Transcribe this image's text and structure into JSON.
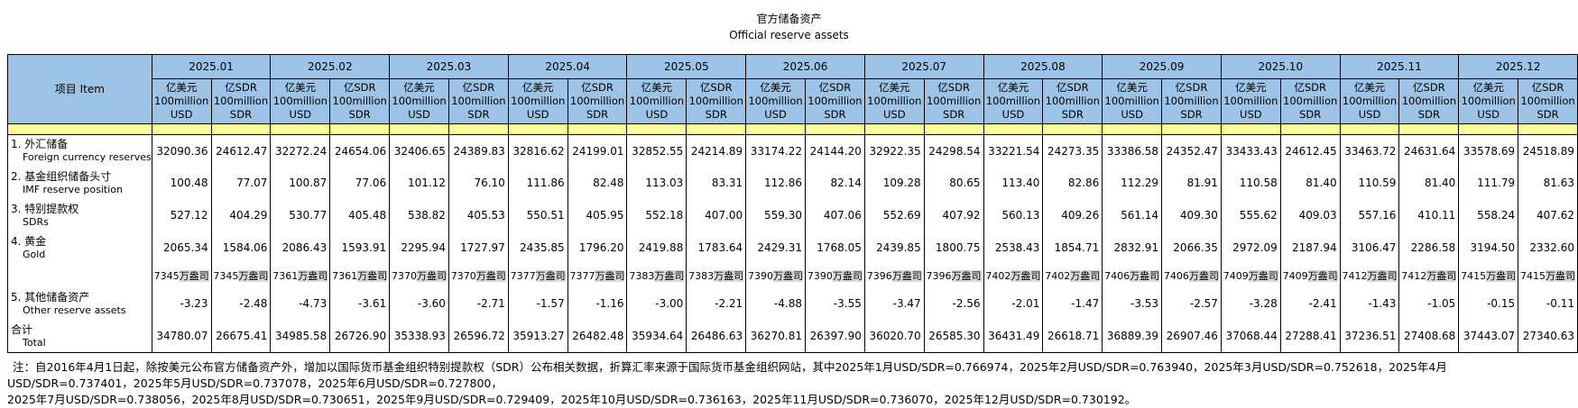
{
  "title": {
    "zh": "官方储备资产",
    "en": "Official reserve assets"
  },
  "item_header": "项目  Item",
  "months": [
    "2025.01",
    "2025.02",
    "2025.03",
    "2025.04",
    "2025.05",
    "2025.06",
    "2025.07",
    "2025.08",
    "2025.09",
    "2025.10",
    "2025.11",
    "2025.12"
  ],
  "units": {
    "usd": [
      "亿美元",
      "100million",
      "USD"
    ],
    "sdr": [
      "亿SDR",
      "100million",
      "SDR"
    ]
  },
  "colors": {
    "header_blue": "#9DC3E6",
    "spacer_yellow": "#FFFF99",
    "ounce_unit_gray": "#D9D9D9"
  },
  "gold_ounce_unit": "万盎司",
  "rows": [
    {
      "kind": "data",
      "zh": "1. 外汇储备",
      "en": "Foreign currency reserves",
      "values": [
        "32090.36",
        "24612.47",
        "32272.24",
        "24654.06",
        "32406.65",
        "24389.83",
        "32816.62",
        "24199.01",
        "32852.55",
        "24214.89",
        "33174.22",
        "24144.20",
        "32922.35",
        "24298.54",
        "33221.54",
        "24273.35",
        "33386.58",
        "24352.47",
        "33433.43",
        "24612.45",
        "33463.72",
        "24631.64",
        "33578.69",
        "24518.89"
      ]
    },
    {
      "kind": "data",
      "zh": "2. 基金组织储备头寸",
      "en": "IMF reserve position",
      "values": [
        "100.48",
        "77.07",
        "100.87",
        "77.06",
        "101.12",
        "76.10",
        "111.86",
        "82.48",
        "113.03",
        "83.31",
        "112.86",
        "82.14",
        "109.28",
        "80.65",
        "113.40",
        "82.86",
        "112.29",
        "81.91",
        "110.58",
        "81.40",
        "110.59",
        "81.40",
        "111.79",
        "81.63"
      ]
    },
    {
      "kind": "data",
      "zh": "3. 特别提款权",
      "en": "SDRs",
      "values": [
        "527.12",
        "404.29",
        "530.77",
        "405.48",
        "538.82",
        "405.53",
        "550.51",
        "405.95",
        "552.18",
        "407.00",
        "559.30",
        "407.06",
        "552.69",
        "407.92",
        "560.13",
        "409.26",
        "561.14",
        "409.30",
        "555.62",
        "409.03",
        "557.16",
        "410.11",
        "558.24",
        "407.62"
      ]
    },
    {
      "kind": "data",
      "zh": "4. 黄金",
      "en": "Gold",
      "values": [
        "2065.34",
        "1584.06",
        "2086.43",
        "1593.91",
        "2295.94",
        "1727.97",
        "2435.85",
        "1796.20",
        "2419.88",
        "1783.64",
        "2429.31",
        "1768.05",
        "2439.85",
        "1800.75",
        "2538.43",
        "1854.71",
        "2832.91",
        "2066.35",
        "2972.09",
        "2187.94",
        "3106.47",
        "2286.58",
        "3194.50",
        "2332.60"
      ]
    },
    {
      "kind": "ounce",
      "zh": "",
      "en": "",
      "values": [
        "7345",
        "7345",
        "7361",
        "7361",
        "7370",
        "7370",
        "7377",
        "7377",
        "7383",
        "7383",
        "7390",
        "7390",
        "7396",
        "7396",
        "7402",
        "7402",
        "7406",
        "7406",
        "7409",
        "7409",
        "7412",
        "7412",
        "7415",
        "7415"
      ]
    },
    {
      "kind": "data",
      "zh": "5. 其他储备资产",
      "en": "Other reserve assets",
      "values": [
        "-3.23",
        "-2.48",
        "-4.73",
        "-3.61",
        "-3.60",
        "-2.71",
        "-1.57",
        "-1.16",
        "-3.00",
        "-2.21",
        "-4.88",
        "-3.55",
        "-3.47",
        "-2.56",
        "-2.01",
        "-1.47",
        "-3.53",
        "-2.57",
        "-3.28",
        "-2.41",
        "-1.43",
        "-1.05",
        "-0.15",
        "-0.11"
      ]
    },
    {
      "kind": "total",
      "zh": "合计",
      "en": "Total",
      "values": [
        "34780.07",
        "26675.41",
        "34985.58",
        "26726.90",
        "35338.93",
        "26596.72",
        "35913.27",
        "26482.48",
        "35934.64",
        "26486.63",
        "36270.81",
        "26397.90",
        "36020.70",
        "26585.30",
        "36431.49",
        "26618.71",
        "36889.39",
        "26907.46",
        "37068.44",
        "27288.41",
        "37236.51",
        "27408.68",
        "37443.07",
        "27340.63"
      ]
    }
  ],
  "note": {
    "line1": "注：自2016年4月1日起，除按美元公布官方储备资产外，增加以国际货币基金组织特别提款权（SDR）公布相关数据，折算汇率来源于国际货币基金组织网站，其中2025年1月USD/SDR=0.766974，2025年2月USD/SDR=0.763940，2025年3月USD/SDR=0.752618，2025年4月USD/SDR=0.737401，2025年5月USD/SDR=0.737078，2025年6月USD/SDR=0.727800，",
    "line2": "2025年7月USD/SDR=0.738056，2025年8月USD/SDR=0.730651，2025年9月USD/SDR=0.729409，2025年10月USD/SDR=0.736163，2025年11月USD/SDR=0.736070，2025年12月USD/SDR=0.730192。"
  }
}
